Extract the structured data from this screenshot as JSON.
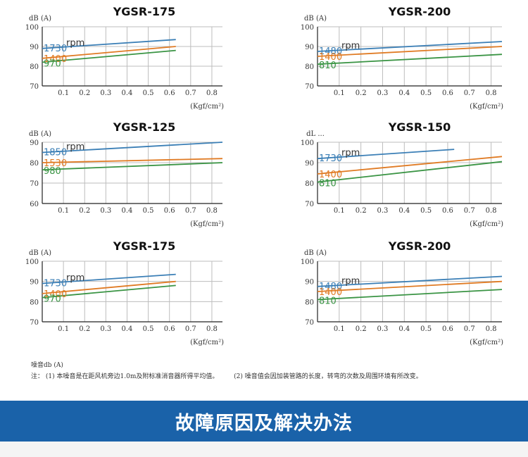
{
  "chart_data": [
    {
      "type": "line",
      "title": "YGSR-175",
      "ylabel": "dB (A)",
      "xlabel": "(Kgf/cm²)",
      "ylim": [
        70,
        100
      ],
      "xlim": [
        0,
        0.85
      ],
      "yticks": [
        "70",
        "80",
        "90",
        "100"
      ],
      "xticks": [
        "0.1",
        "0.2",
        "0.3",
        "0.4",
        "0.5",
        "0.6",
        "0.7",
        "0.8"
      ],
      "unit_label": "rpm",
      "series": [
        {
          "name": "1730",
          "x": [
            0.0,
            0.63
          ],
          "y": [
            89.0,
            93.5
          ]
        },
        {
          "name": "1400",
          "x": [
            0.0,
            0.63
          ],
          "y": [
            84.0,
            90.0
          ]
        },
        {
          "name": "970",
          "x": [
            0.0,
            0.63
          ],
          "y": [
            82.0,
            88.0
          ]
        }
      ]
    },
    {
      "type": "line",
      "title": "YGSR-200",
      "ylabel": "dB (A)",
      "xlabel": "(Kgf/cm²)",
      "ylim": [
        70,
        100
      ],
      "xlim": [
        0,
        0.85
      ],
      "yticks": [
        "70",
        "80",
        "90",
        "100"
      ],
      "xticks": [
        "0.1",
        "0.2",
        "0.3",
        "0.4",
        "0.5",
        "0.6",
        "0.7",
        "0.8"
      ],
      "unit_label": "rpm",
      "series": [
        {
          "name": "1480",
          "x": [
            0.0,
            0.85
          ],
          "y": [
            87.5,
            92.5
          ]
        },
        {
          "name": "1400",
          "x": [
            0.0,
            0.85
          ],
          "y": [
            85.0,
            90.0
          ]
        },
        {
          "name": "810",
          "x": [
            0.0,
            0.85
          ],
          "y": [
            81.0,
            86.0
          ]
        }
      ]
    },
    {
      "type": "line",
      "title": "YGSR-125",
      "ylabel": "dB (A)",
      "xlabel": "(Kgf/cm²)",
      "ylim": [
        60,
        90
      ],
      "xlim": [
        0,
        0.85
      ],
      "yticks": [
        "60",
        "70",
        "80",
        "90"
      ],
      "xticks": [
        "0.1",
        "0.2",
        "0.3",
        "0.4",
        "0.5",
        "0.6",
        "0.7",
        "0.8"
      ],
      "unit_label": "rpm",
      "series": [
        {
          "name": "1850",
          "x": [
            0.0,
            0.85
          ],
          "y": [
            85.0,
            90.0
          ]
        },
        {
          "name": "1530",
          "x": [
            0.0,
            0.85
          ],
          "y": [
            80.0,
            82.0
          ]
        },
        {
          "name": "980",
          "x": [
            0.0,
            0.85
          ],
          "y": [
            76.5,
            80.0
          ]
        }
      ]
    },
    {
      "type": "line",
      "title": "YGSR-150",
      "ylabel": "dL ...",
      "xlabel": "(Kgf/cm²)",
      "ylim": [
        70,
        100
      ],
      "xlim": [
        0,
        0.85
      ],
      "yticks": [
        "70",
        "80",
        "90",
        "100"
      ],
      "xticks": [
        "0.1",
        "0.2",
        "0.3",
        "0.4",
        "0.5",
        "0.6",
        "0.7",
        "0.8"
      ],
      "unit_label": "rpm",
      "series": [
        {
          "name": "1730",
          "x": [
            0.0,
            0.63
          ],
          "y": [
            92.0,
            96.5
          ]
        },
        {
          "name": "1400",
          "x": [
            0.0,
            0.85
          ],
          "y": [
            84.5,
            93.0
          ]
        },
        {
          "name": "810",
          "x": [
            0.0,
            0.85
          ],
          "y": [
            80.5,
            90.5
          ]
        }
      ]
    },
    {
      "type": "line",
      "title": "YGSR-175",
      "ylabel": "dB (A)",
      "xlabel": "(Kgf/cm²)",
      "ylim": [
        70,
        100
      ],
      "xlim": [
        0,
        0.85
      ],
      "yticks": [
        "70",
        "80",
        "90",
        "100"
      ],
      "xticks": [
        "0.1",
        "0.2",
        "0.3",
        "0.4",
        "0.5",
        "0.6",
        "0.7",
        "0.8"
      ],
      "unit_label": "rpm",
      "series": [
        {
          "name": "1730",
          "x": [
            0.0,
            0.63
          ],
          "y": [
            89.0,
            93.5
          ]
        },
        {
          "name": "1400",
          "x": [
            0.0,
            0.63
          ],
          "y": [
            84.0,
            90.0
          ]
        },
        {
          "name": "970",
          "x": [
            0.0,
            0.63
          ],
          "y": [
            82.0,
            88.0
          ]
        }
      ]
    },
    {
      "type": "line",
      "title": "YGSR-200",
      "ylabel": "dB (A)",
      "xlabel": "(Kgf/cm²)",
      "ylim": [
        70,
        100
      ],
      "xlim": [
        0,
        0.85
      ],
      "yticks": [
        "70",
        "80",
        "90",
        "100"
      ],
      "xticks": [
        "0.1",
        "0.2",
        "0.3",
        "0.4",
        "0.5",
        "0.6",
        "0.7",
        "0.8"
      ],
      "unit_label": "rpm",
      "series": [
        {
          "name": "1480",
          "x": [
            0.0,
            0.85
          ],
          "y": [
            87.5,
            92.5
          ]
        },
        {
          "name": "1400",
          "x": [
            0.0,
            0.85
          ],
          "y": [
            85.0,
            90.0
          ]
        },
        {
          "name": "810",
          "x": [
            0.0,
            0.85
          ],
          "y": [
            81.0,
            86.0
          ]
        }
      ]
    }
  ],
  "series_colors": [
    "#3b7fb6",
    "#e07b24",
    "#3a9444"
  ],
  "notes": {
    "heading": "噪音db (A)",
    "note_prefix": "注：",
    "note1": "(1) 本噪音是在距风机旁边1.0m及附标准消音器所得平均值。",
    "note2": "(2) 噪音值会因加装管路的长度，转弯的次数及周围环境有所改变。"
  },
  "banner": {
    "title": "故障原因及解决办法",
    "color": "#1a62a9"
  }
}
